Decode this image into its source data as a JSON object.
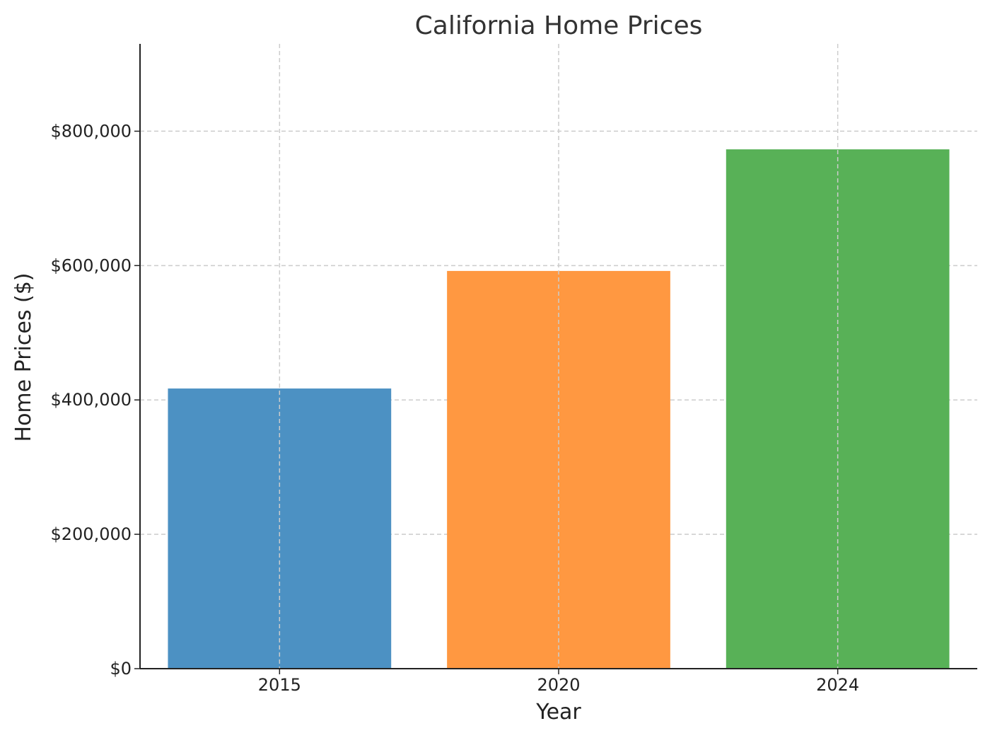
{
  "chart_data": {
    "type": "bar",
    "title": "California Home Prices",
    "xlabel": "Year",
    "ylabel": "Home Prices ($)",
    "categories": [
      "2015",
      "2020",
      "2024"
    ],
    "values": [
      417000,
      592000,
      773000
    ],
    "colors": [
      "#4c91c3",
      "#ff9841",
      "#58b157"
    ],
    "ylim": [
      0,
      930000
    ],
    "yticks": [
      0,
      200000,
      400000,
      600000,
      800000
    ],
    "ytick_labels": [
      "$0",
      "$200,000",
      "$400,000",
      "$600,000",
      "$800,000"
    ],
    "grid": true,
    "grid_style": "dashed"
  }
}
